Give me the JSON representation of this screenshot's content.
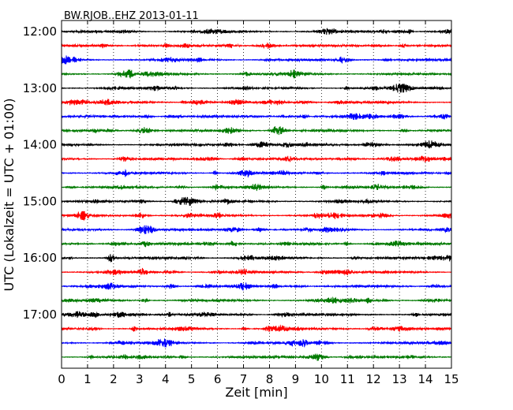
{
  "chart_data": {
    "type": "line",
    "title": "BW.RJOB..EHZ 2013-01-11",
    "xlabel": "Zeit  [min]",
    "ylabel": "UTC (Lokalzeit = UTC + 01:00)",
    "xlim": [
      0,
      15
    ],
    "x_ticks": [
      "0",
      "1",
      "2",
      "3",
      "4",
      "5",
      "6",
      "7",
      "8",
      "9",
      "10",
      "11",
      "12",
      "13",
      "14",
      "15"
    ],
    "y_ticks": [
      "12:00",
      "13:00",
      "14:00",
      "15:00",
      "16:00",
      "17:00"
    ],
    "grid": "vertical dotted lines at each minute",
    "trace_interval_min": 15,
    "colors": [
      "#000000",
      "#ff0000",
      "#0000ff",
      "#007a00"
    ],
    "traces": [
      {
        "start": "12:00",
        "color": "#000000"
      },
      {
        "start": "12:15",
        "color": "#ff0000"
      },
      {
        "start": "12:30",
        "color": "#0000ff"
      },
      {
        "start": "12:45",
        "color": "#007a00"
      },
      {
        "start": "13:00",
        "color": "#000000"
      },
      {
        "start": "13:15",
        "color": "#ff0000"
      },
      {
        "start": "13:30",
        "color": "#0000ff"
      },
      {
        "start": "13:45",
        "color": "#007a00"
      },
      {
        "start": "14:00",
        "color": "#000000"
      },
      {
        "start": "14:15",
        "color": "#ff0000"
      },
      {
        "start": "14:30",
        "color": "#0000ff"
      },
      {
        "start": "14:45",
        "color": "#007a00"
      },
      {
        "start": "15:00",
        "color": "#000000"
      },
      {
        "start": "15:15",
        "color": "#ff0000"
      },
      {
        "start": "15:30",
        "color": "#0000ff"
      },
      {
        "start": "15:45",
        "color": "#007a00"
      },
      {
        "start": "16:00",
        "color": "#000000"
      },
      {
        "start": "16:15",
        "color": "#ff0000"
      },
      {
        "start": "16:30",
        "color": "#0000ff"
      },
      {
        "start": "16:45",
        "color": "#007a00"
      },
      {
        "start": "17:00",
        "color": "#000000"
      },
      {
        "start": "17:15",
        "color": "#ff0000"
      },
      {
        "start": "17:30",
        "color": "#0000ff"
      },
      {
        "start": "17:45",
        "color": "#007a00"
      }
    ]
  }
}
